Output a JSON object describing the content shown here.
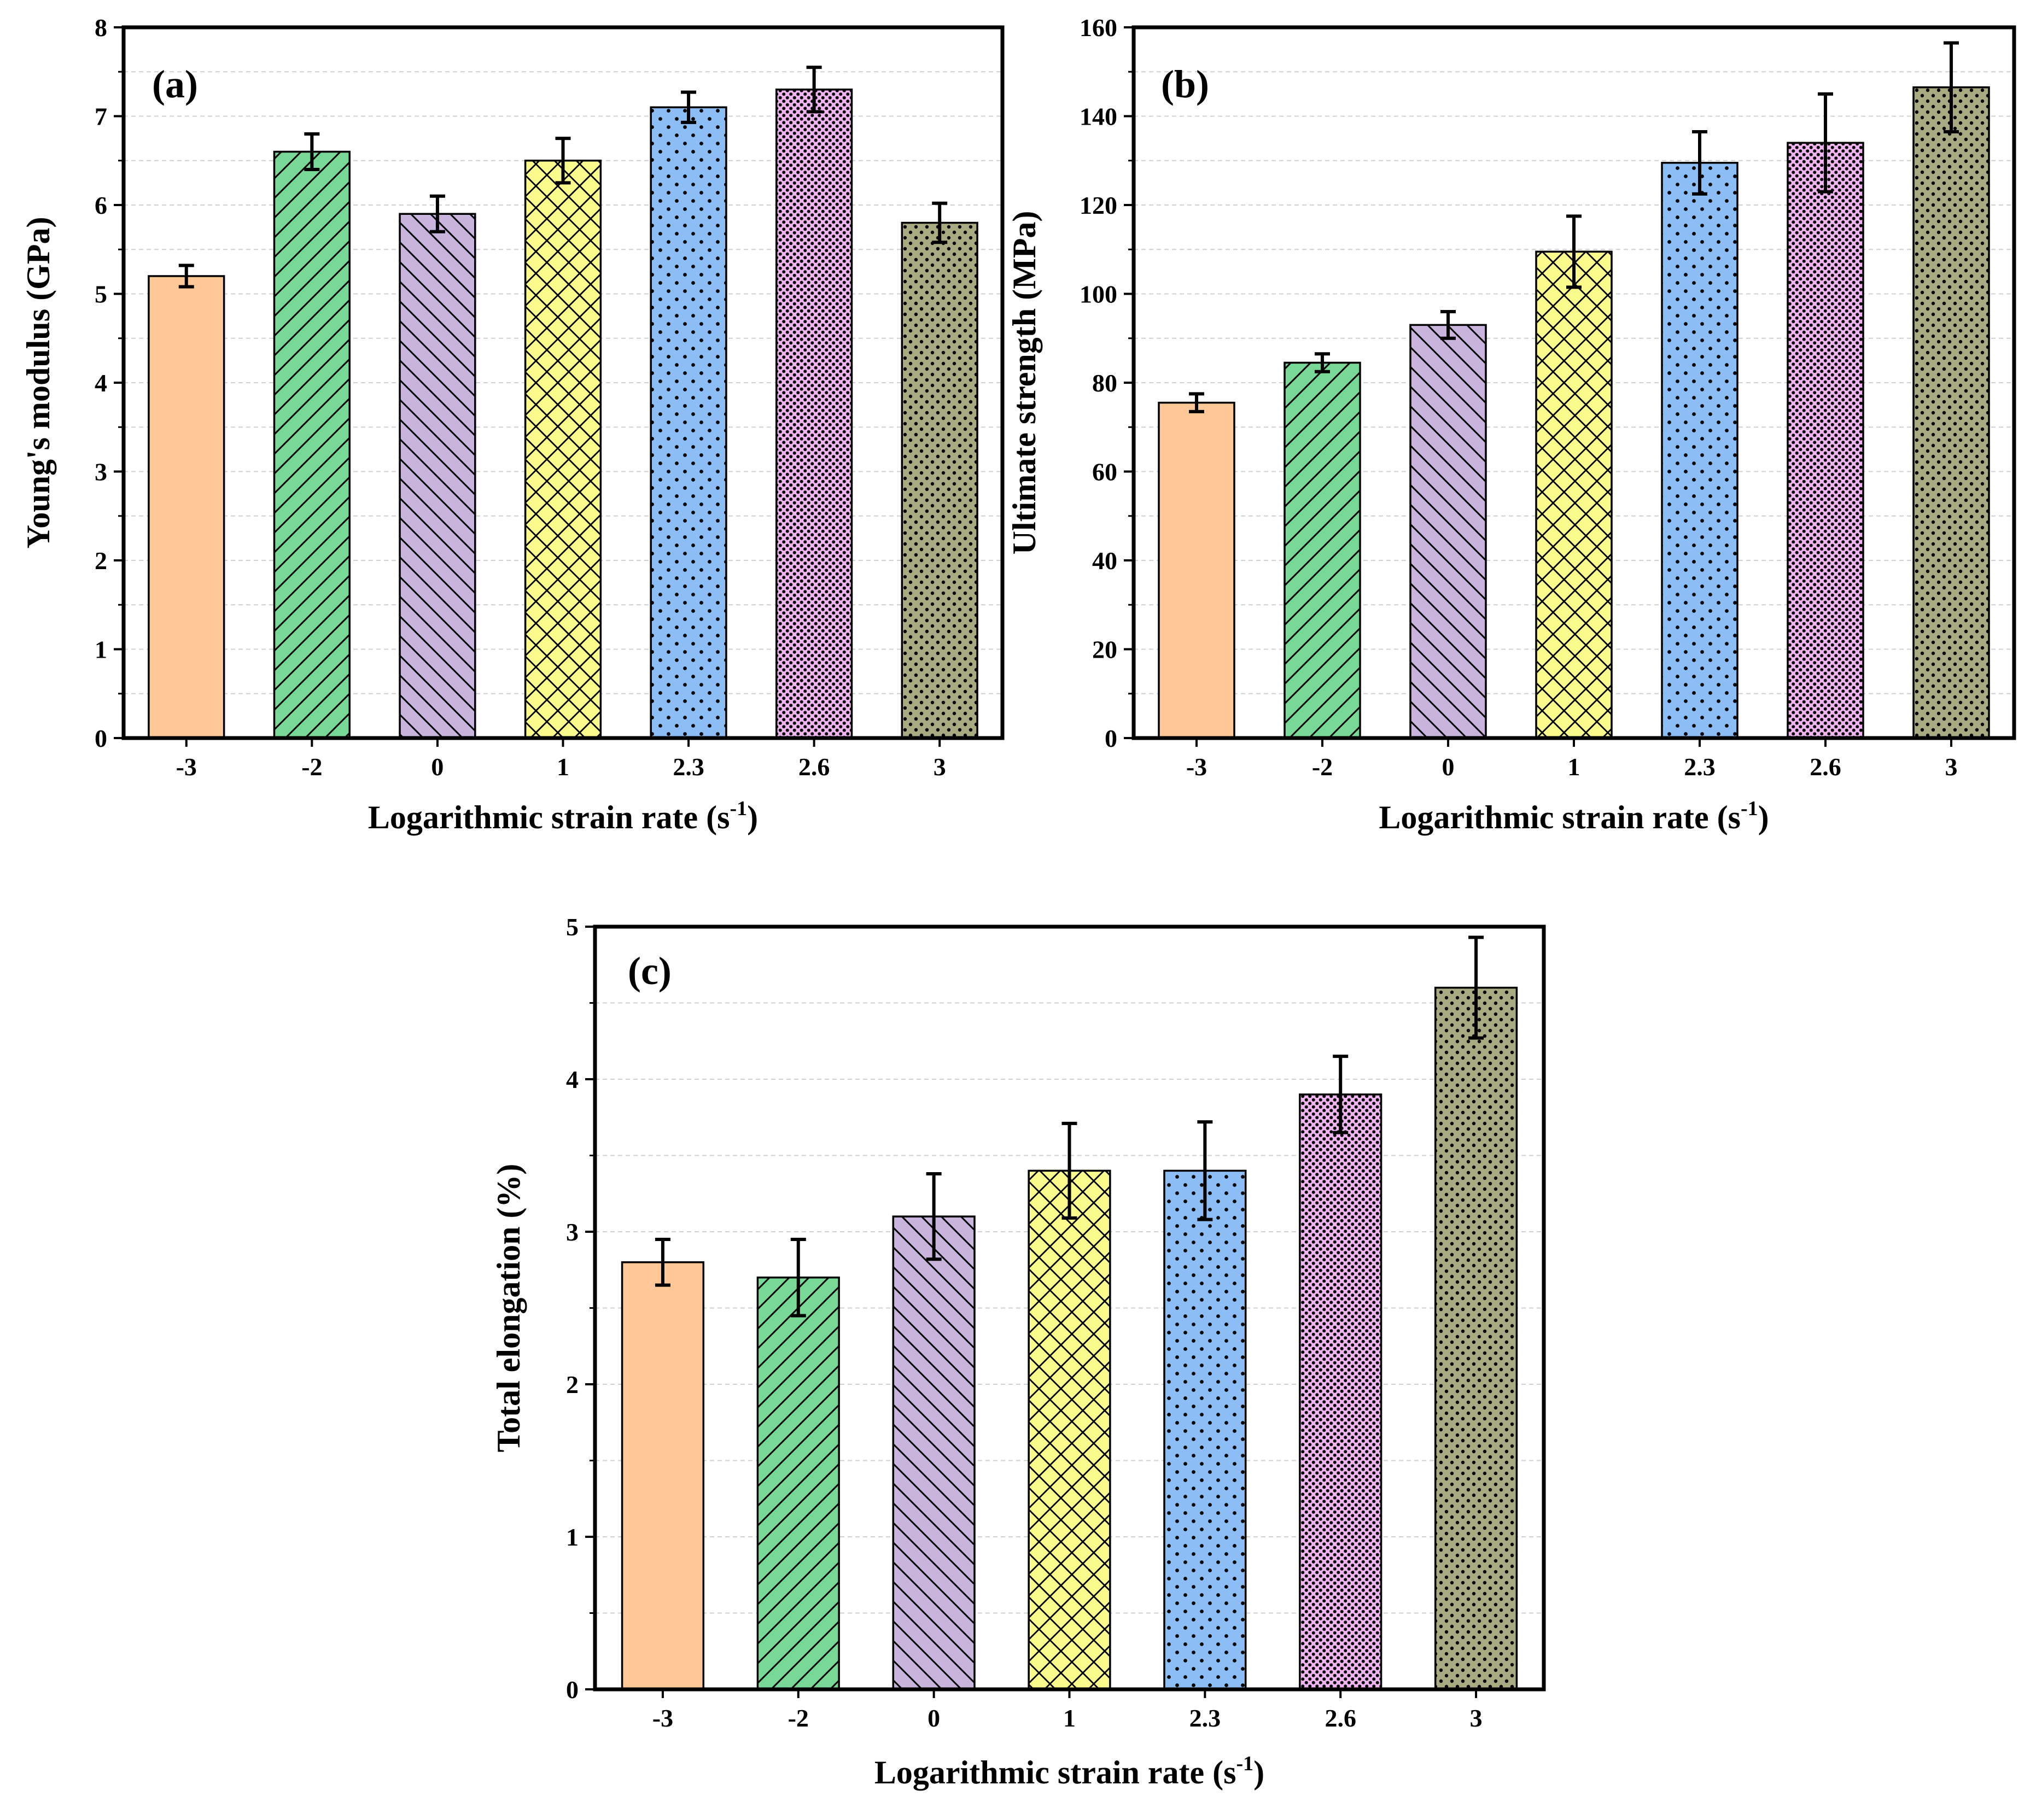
{
  "chart_data": [
    {
      "type": "bar",
      "panel_label": "(a)",
      "categories": [
        "-3",
        "-2",
        "0",
        "1",
        "2.3",
        "2.6",
        "3"
      ],
      "values": [
        5.2,
        6.6,
        5.9,
        6.5,
        7.1,
        7.3,
        5.8
      ],
      "errors": [
        0.12,
        0.2,
        0.2,
        0.25,
        0.17,
        0.25,
        0.22
      ],
      "xlabel": "Logarithmic strain rate (s",
      "xlabel_sup": "-1",
      "xlabel_suffix": ")",
      "ylabel": "Young's modulus (GPa)",
      "ylim": [
        0,
        8
      ],
      "yticks": [
        "0",
        "1",
        "2",
        "3",
        "4",
        "5",
        "6",
        "7",
        "8"
      ],
      "grid": true
    },
    {
      "type": "bar",
      "panel_label": "(b)",
      "categories": [
        "-3",
        "-2",
        "0",
        "1",
        "2.3",
        "2.6",
        "3"
      ],
      "values": [
        75.5,
        84.5,
        93,
        109.5,
        129.5,
        134,
        146.5
      ],
      "errors": [
        2,
        2,
        3,
        8,
        7,
        11,
        10
      ],
      "xlabel": "Logarithmic strain rate (s",
      "xlabel_sup": "-1",
      "xlabel_suffix": ")",
      "ylabel": "Ultimate strength (MPa)",
      "ylim": [
        0,
        160
      ],
      "yticks": [
        "0",
        "20",
        "40",
        "60",
        "80",
        "100",
        "120",
        "140",
        "160"
      ],
      "grid": true
    },
    {
      "type": "bar",
      "panel_label": "(c)",
      "categories": [
        "-3",
        "-2",
        "0",
        "1",
        "2.3",
        "2.6",
        "3"
      ],
      "values": [
        2.8,
        2.7,
        3.1,
        3.4,
        3.4,
        3.9,
        4.6
      ],
      "errors": [
        0.15,
        0.25,
        0.28,
        0.31,
        0.32,
        0.25,
        0.33
      ],
      "xlabel": "Logarithmic strain rate (s",
      "xlabel_sup": "-1",
      "xlabel_suffix": ")",
      "ylabel": "Total elongation (%)",
      "ylim": [
        0,
        5
      ],
      "yticks": [
        "0",
        "1",
        "2",
        "3",
        "4",
        "5"
      ],
      "grid": true
    }
  ],
  "bar_colors": [
    "#ffc896",
    "#78d896",
    "#c8b4dc",
    "#fafa8c",
    "#8cbef5",
    "#f0b4f0",
    "#a8aa82"
  ],
  "bar_patterns": [
    "solid",
    "diag-up",
    "diag-down",
    "crosshatch",
    "dots-sparse",
    "dots-dense",
    "dots-medium"
  ]
}
